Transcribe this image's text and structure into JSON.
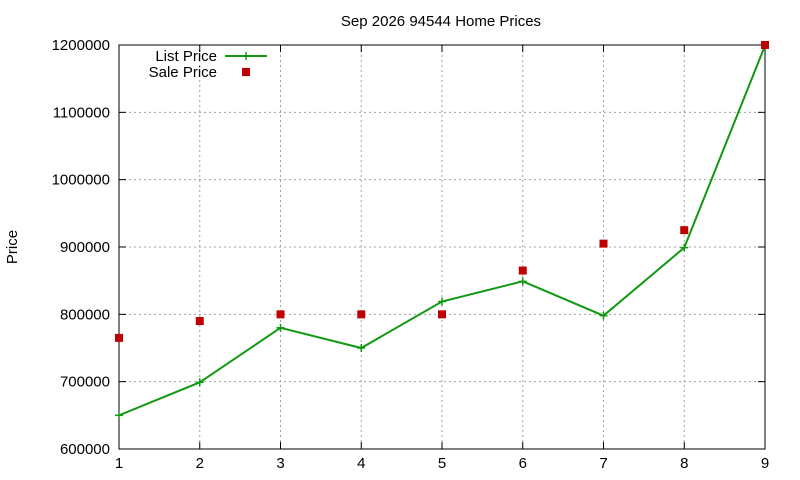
{
  "chart_data": {
    "type": "line",
    "title": "Sep 2026 94544 Home Prices",
    "xlabel": "",
    "ylabel": "Price",
    "x": [
      1,
      2,
      3,
      4,
      5,
      6,
      7,
      8,
      9
    ],
    "xlim": [
      1,
      9
    ],
    "ylim": [
      600000,
      1200000
    ],
    "x_ticks": [
      "1",
      "2",
      "3",
      "4",
      "5",
      "6",
      "7",
      "8",
      "9"
    ],
    "y_ticks": [
      {
        "value": 600000,
        "label": "600000"
      },
      {
        "value": 700000,
        "label": "700000"
      },
      {
        "value": 800000,
        "label": "800000"
      },
      {
        "value": 900000,
        "label": "900000"
      },
      {
        "value": 1000000,
        "label": "1000000"
      },
      {
        "value": 1100000,
        "label": "1100000"
      },
      {
        "value": 1200000,
        "label": "1200000"
      }
    ],
    "grid": true,
    "legend_position": "top-left",
    "series": [
      {
        "name": "List Price",
        "style": "line-plus",
        "color": "#119911",
        "values": [
          650000,
          699000,
          780000,
          750000,
          819000,
          849000,
          798000,
          899000,
          1199000
        ]
      },
      {
        "name": "Sale Price",
        "style": "square",
        "color": "#c00000",
        "values": [
          765000,
          790000,
          800000,
          800000,
          800000,
          865000,
          905000,
          925000,
          1200000
        ]
      }
    ]
  }
}
